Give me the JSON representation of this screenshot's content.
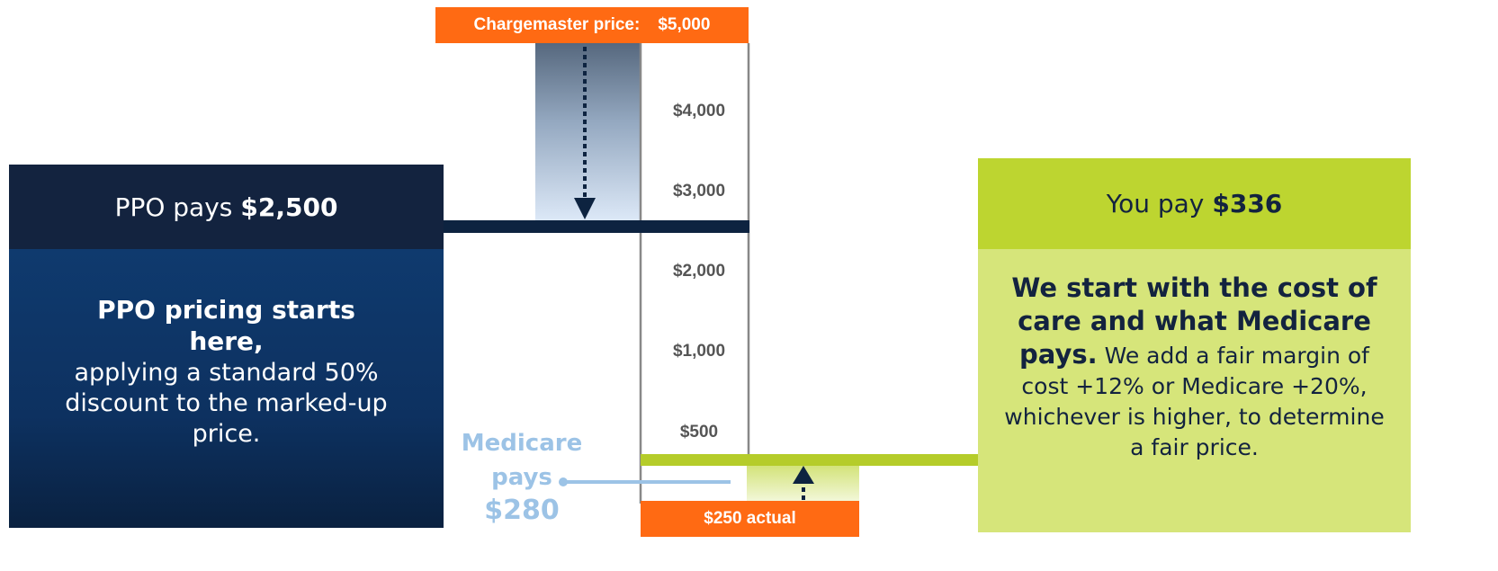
{
  "chargemaster": {
    "label": "Chargemaster price:",
    "price": "$5,000"
  },
  "scale": [
    "$4,000",
    "$3,000",
    "$2,000",
    "$1,000",
    "$500"
  ],
  "ppo": {
    "header_prefix": "PPO pays",
    "header_amount": "$2,500",
    "lead": "PPO pricing starts here,",
    "body": "applying a standard 50% discount to the marked-up price."
  },
  "medicare": {
    "lines": [
      "Medicare",
      "pays",
      "$280"
    ]
  },
  "actual": "$250 actual",
  "you": {
    "header_prefix": "You pay",
    "header_amount": "$336",
    "lead": "We start with the cost of care and what Medicare pays.",
    "body": "We add a fair margin of cost +12% or Medicare +20%, whichever is higher, to determine a fair price."
  }
}
